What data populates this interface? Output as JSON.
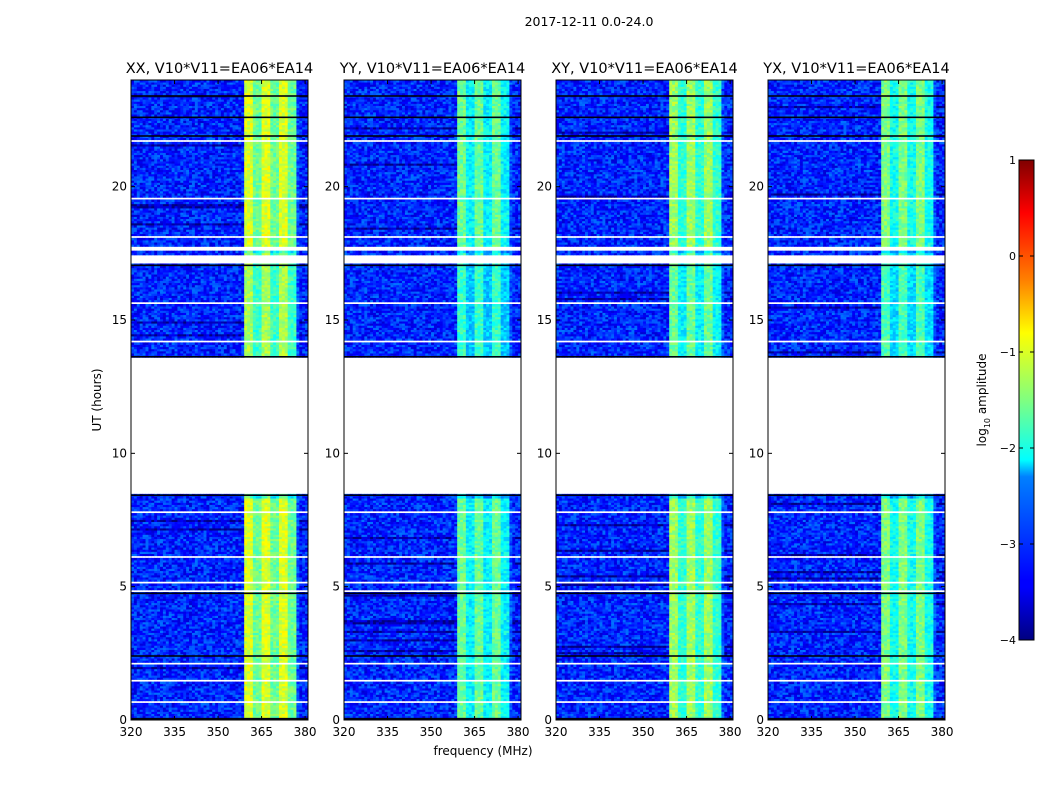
{
  "chart_data": {
    "type": "heatmap",
    "suptitle": "2017-12-11 0.0-24.0",
    "xlabel": "frequency (MHz)",
    "ylabel": "UT (hours)",
    "xlim": [
      320,
      381
    ],
    "ylim": [
      0,
      24
    ],
    "xticks": [
      320,
      335,
      350,
      365,
      380
    ],
    "yticks": [
      0,
      5,
      10,
      15,
      20
    ],
    "no_data_hours": [
      [
        8.45,
        13.6
      ],
      [
        17.15,
        17.45
      ],
      [
        17.6,
        17.75
      ],
      [
        6.05,
        6.2
      ],
      [
        21.65,
        21.75
      ],
      [
        4.8,
        4.9
      ],
      [
        0.65,
        0.72
      ],
      [
        1.45,
        1.5
      ],
      [
        2.1,
        2.15
      ],
      [
        5.15,
        5.2
      ],
      [
        7.8,
        7.85
      ],
      [
        14.2,
        14.25
      ],
      [
        15.6,
        15.65
      ],
      [
        18.1,
        18.15
      ],
      [
        19.55,
        19.6
      ],
      [
        20.2,
        20.25
      ],
      [
        23.5,
        23.55
      ]
    ],
    "bright_band_mhz": [
      359,
      377
    ],
    "colorbar": {
      "label": "log",
      "label_sub": "10",
      "label_rest": " amplitude",
      "min": -4,
      "max": 1,
      "ticks": [
        "1",
        "0",
        "−1",
        "−2",
        "−3",
        "−4"
      ]
    },
    "panels": [
      {
        "title": "XX, V10*V11=EA06*EA14",
        "band_level": -1.05
      },
      {
        "title": "YY, V10*V11=EA06*EA14",
        "band_level": -1.6
      },
      {
        "title": "XY, V10*V11=EA06*EA14",
        "band_level": -1.35
      },
      {
        "title": "YX, V10*V11=EA06*EA14",
        "band_level": -1.5
      }
    ]
  }
}
